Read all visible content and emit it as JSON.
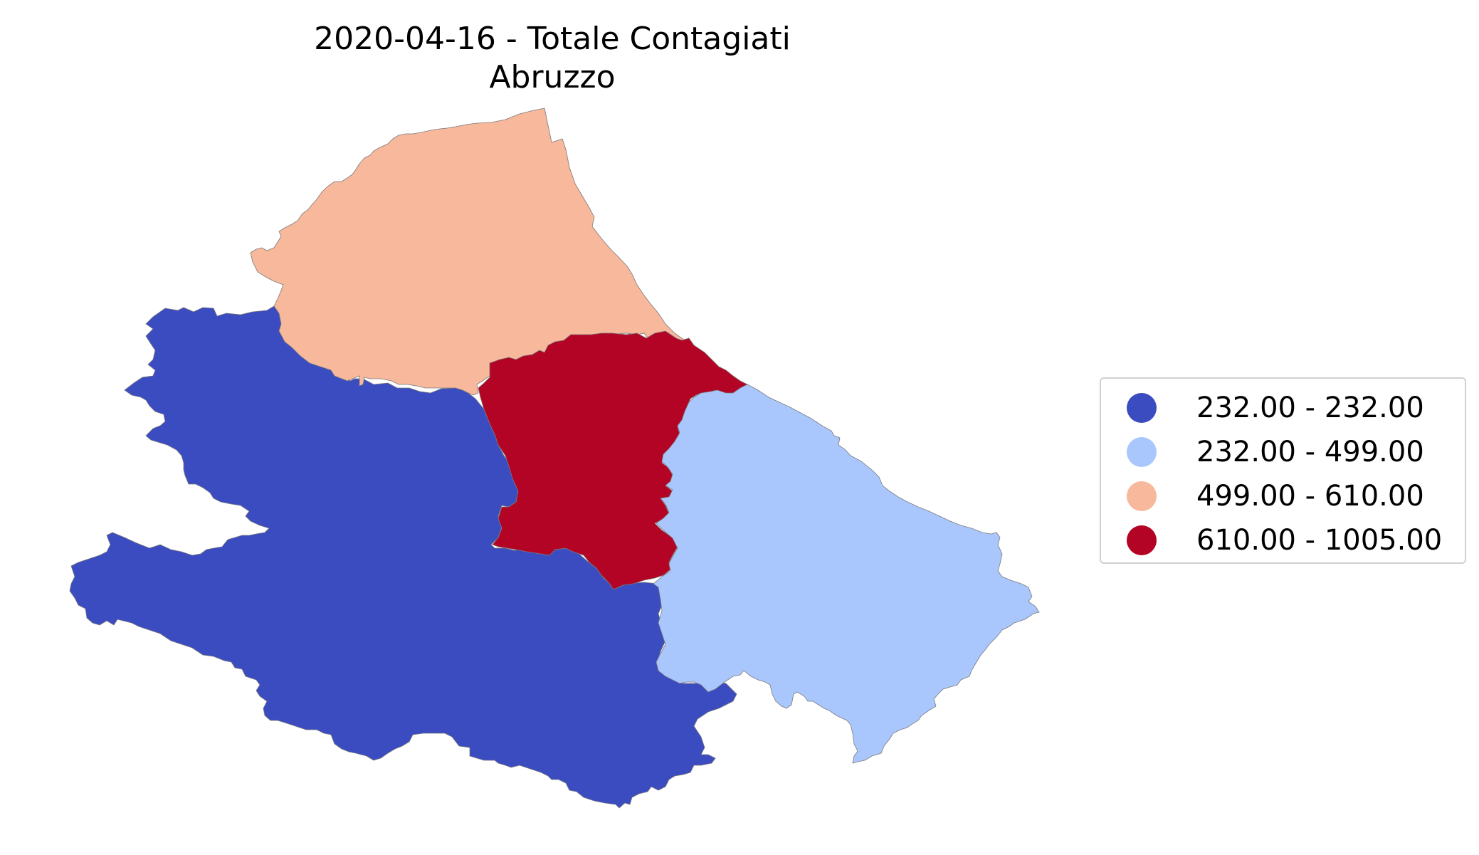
{
  "title": {
    "line1": "2020-04-16 - Totale Contagiati",
    "line2": "Abruzzo"
  },
  "regions": [
    {
      "id": "l-aquila",
      "bin": 0,
      "color": "#3b4cc0"
    },
    {
      "id": "chieti",
      "bin": 1,
      "color": "#aac7fd"
    },
    {
      "id": "teramo",
      "bin": 2,
      "color": "#f7b89c"
    },
    {
      "id": "pescara",
      "bin": 3,
      "color": "#b40426"
    }
  ],
  "legend": {
    "items": [
      {
        "label": "232.00 - 232.00",
        "color": "#3b4cc0"
      },
      {
        "label": "232.00 - 499.00",
        "color": "#aac7fd"
      },
      {
        "label": "499.00 - 610.00",
        "color": "#f7b89c"
      },
      {
        "label": "610.00 - 1005.00",
        "color": "#b40426"
      }
    ]
  }
}
